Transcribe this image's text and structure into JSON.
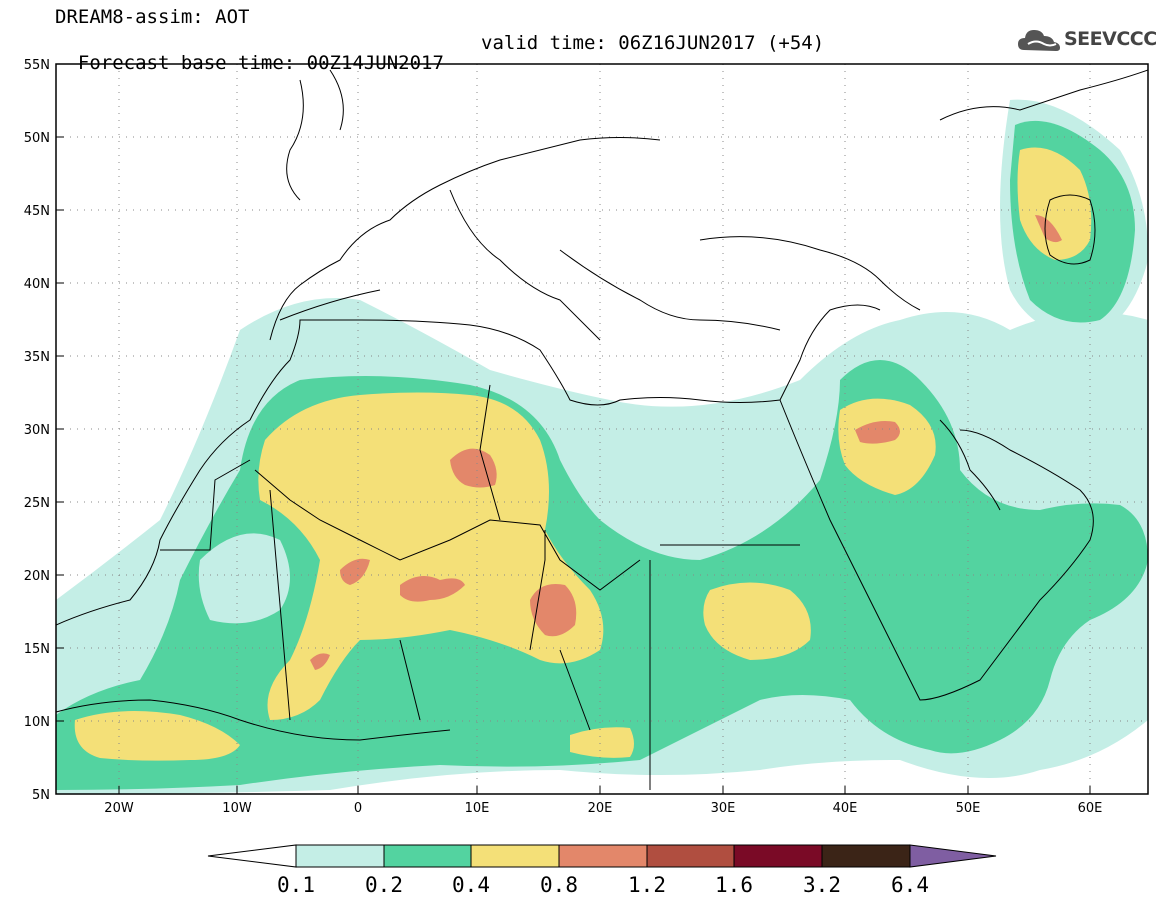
{
  "header": {
    "line1": "DREAM8-assim: AOT",
    "line2": "Forecast base time: 00Z14JUN2017",
    "valid": "valid time: 06Z16JUN2017 (+54)",
    "logo_text": "SEEVCCC"
  },
  "map": {
    "lon_ticks": [
      "20W",
      "10W",
      "0",
      "10E",
      "20E",
      "30E",
      "40E",
      "50E",
      "60E"
    ],
    "lat_ticks": [
      "5N",
      "10N",
      "15N",
      "20N",
      "25N",
      "30N",
      "35N",
      "40N",
      "45N",
      "50N",
      "55N"
    ],
    "lon_range": [
      -25,
      65
    ],
    "lat_range": [
      5,
      55
    ],
    "gridlines": "dotted"
  },
  "colorbar": {
    "labels": [
      "0.1",
      "0.2",
      "0.4",
      "0.8",
      "1.2",
      "1.6",
      "3.2",
      "6.4"
    ],
    "colors": [
      "#c4eee6",
      "#53d3a0",
      "#f4e078",
      "#e3876a",
      "#b04e40",
      "#7a0a26",
      "#3b2417",
      "#7f5ea2"
    ],
    "extend": "both"
  }
}
